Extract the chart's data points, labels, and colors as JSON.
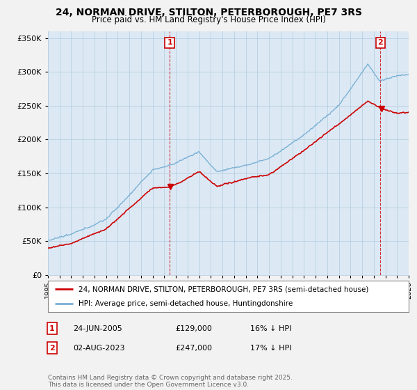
{
  "title": "24, NORMAN DRIVE, STILTON, PETERBOROUGH, PE7 3RS",
  "subtitle": "Price paid vs. HM Land Registry's House Price Index (HPI)",
  "legend_line1": "24, NORMAN DRIVE, STILTON, PETERBOROUGH, PE7 3RS (semi-detached house)",
  "legend_line2": "HPI: Average price, semi-detached house, Huntingdonshire",
  "annotation1_date": "24-JUN-2005",
  "annotation1_price": 129000,
  "annotation1_text": "16% ↓ HPI",
  "annotation2_date": "02-AUG-2023",
  "annotation2_price": 247000,
  "annotation2_text": "17% ↓ HPI",
  "footer": "Contains HM Land Registry data © Crown copyright and database right 2025.\nThis data is licensed under the Open Government Licence v3.0.",
  "line_color_red": "#cc0000",
  "line_color_blue": "#7ab0d4",
  "annotation_color": "#cc0000",
  "background_color": "#f2f2f2",
  "plot_bg_color": "#dce9f5",
  "grid_color": "#b8cfe0",
  "ylim": [
    0,
    360000
  ],
  "yticks": [
    0,
    50000,
    100000,
    150000,
    200000,
    250000,
    300000,
    350000
  ],
  "sale1_year": 2005.46,
  "sale2_year": 2023.58,
  "x_start_year": 1995,
  "x_end_year": 2026
}
